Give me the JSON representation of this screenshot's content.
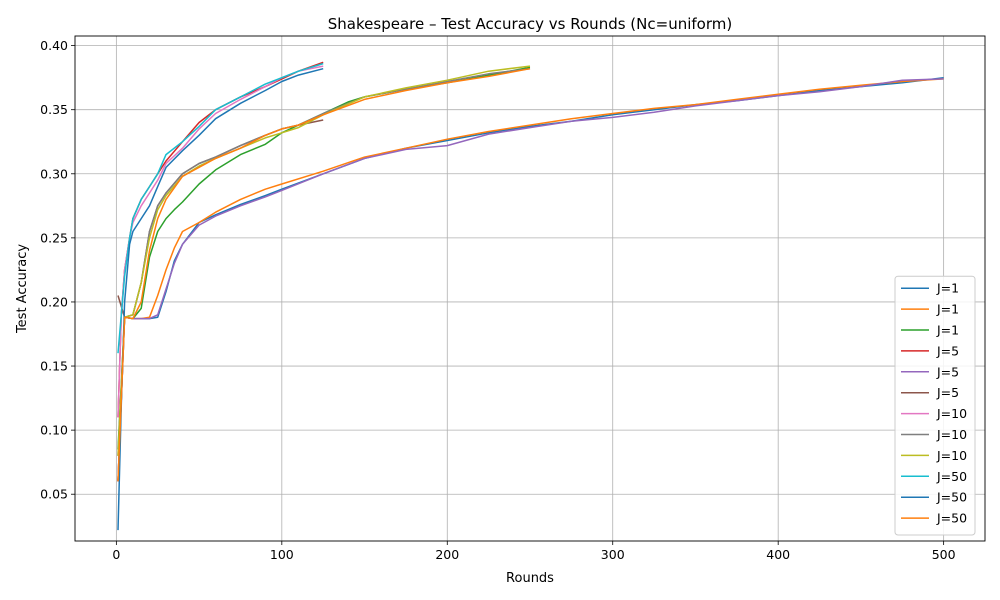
{
  "chart_data": {
    "type": "line",
    "title": "Shakespeare – Test Accuracy vs Rounds (Nc=uniform)",
    "xlabel": "Rounds",
    "ylabel": "Test Accuracy",
    "xlim": [
      -25,
      525
    ],
    "ylim": [
      0.0135,
      0.4075
    ],
    "xticks": [
      0,
      100,
      200,
      300,
      400,
      500
    ],
    "yticks": [
      0.05,
      0.1,
      0.15,
      0.2,
      0.25,
      0.3,
      0.35,
      0.4
    ],
    "grid": true,
    "legend_position": "lower-right",
    "series": [
      {
        "name": "J=1",
        "color": "#1f77b4",
        "x": [
          1,
          5,
          10,
          15,
          20,
          25,
          30,
          35,
          40,
          50,
          60,
          75,
          90,
          100,
          125,
          150,
          175,
          200,
          225,
          250,
          275,
          300,
          325,
          350,
          375,
          400,
          425,
          450,
          475,
          500
        ],
        "y": [
          0.06,
          0.188,
          0.187,
          0.187,
          0.187,
          0.188,
          0.208,
          0.232,
          0.245,
          0.262,
          0.268,
          0.276,
          0.283,
          0.288,
          0.3,
          0.312,
          0.32,
          0.326,
          0.332,
          0.337,
          0.341,
          0.346,
          0.35,
          0.354,
          0.357,
          0.361,
          0.365,
          0.368,
          0.371,
          0.375
        ]
      },
      {
        "name": "J=1",
        "color": "#ff7f0e",
        "x": [
          1,
          5,
          10,
          15,
          20,
          25,
          30,
          35,
          40,
          50,
          60,
          75,
          90,
          100,
          125,
          150,
          175,
          200,
          225,
          250,
          275,
          300,
          325,
          350,
          375,
          400,
          425,
          450,
          475,
          500
        ],
        "y": [
          0.06,
          0.188,
          0.187,
          0.187,
          0.188,
          0.205,
          0.225,
          0.242,
          0.255,
          0.262,
          0.27,
          0.28,
          0.288,
          0.292,
          0.302,
          0.313,
          0.32,
          0.327,
          0.333,
          0.338,
          0.343,
          0.347,
          0.351,
          0.354,
          0.358,
          0.362,
          0.366,
          0.369,
          0.372,
          0.374
        ]
      },
      {
        "name": "J=1",
        "color": "#2ca02c",
        "x": [
          1,
          5,
          10,
          15,
          20,
          25,
          30,
          35,
          40,
          50,
          60,
          75,
          90,
          100,
          110,
          125,
          140,
          150,
          175,
          200,
          225,
          250
        ],
        "y": [
          0.085,
          0.188,
          0.187,
          0.195,
          0.235,
          0.255,
          0.265,
          0.272,
          0.278,
          0.292,
          0.303,
          0.315,
          0.323,
          0.332,
          0.338,
          0.347,
          0.356,
          0.36,
          0.366,
          0.371,
          0.377,
          0.383
        ]
      },
      {
        "name": "J=5",
        "color": "#d62728",
        "x": [
          1,
          3,
          5,
          8,
          10,
          15,
          20,
          25,
          30,
          40,
          50,
          60,
          75,
          90,
          100,
          110,
          125
        ],
        "y": [
          0.11,
          0.19,
          0.225,
          0.25,
          0.265,
          0.28,
          0.29,
          0.3,
          0.31,
          0.325,
          0.34,
          0.35,
          0.36,
          0.368,
          0.374,
          0.38,
          0.387
        ]
      },
      {
        "name": "J=5",
        "color": "#9467bd",
        "x": [
          1,
          5,
          10,
          15,
          20,
          25,
          30,
          35,
          40,
          50,
          60,
          75,
          90,
          100,
          125,
          150,
          175,
          200,
          225,
          250,
          275,
          300,
          325,
          350,
          375,
          400,
          425,
          450,
          475,
          500
        ],
        "y": [
          0.06,
          0.188,
          0.187,
          0.187,
          0.187,
          0.19,
          0.21,
          0.23,
          0.245,
          0.26,
          0.267,
          0.275,
          0.282,
          0.287,
          0.3,
          0.312,
          0.319,
          0.322,
          0.331,
          0.336,
          0.341,
          0.344,
          0.348,
          0.353,
          0.357,
          0.361,
          0.364,
          0.368,
          0.373,
          0.374
        ]
      },
      {
        "name": "J=5",
        "color": "#8c564b",
        "x": [
          1,
          5,
          10,
          15,
          20,
          25,
          30,
          40,
          50,
          60,
          75,
          90,
          100,
          110,
          125
        ],
        "y": [
          0.205,
          0.188,
          0.19,
          0.215,
          0.255,
          0.275,
          0.285,
          0.3,
          0.308,
          0.313,
          0.322,
          0.33,
          0.335,
          0.338,
          0.342
        ]
      },
      {
        "name": "J=10",
        "color": "#e377c2",
        "x": [
          1,
          3,
          5,
          8,
          10,
          15,
          20,
          25,
          30,
          40,
          50,
          60,
          75,
          90,
          100,
          110,
          125
        ],
        "y": [
          0.11,
          0.19,
          0.225,
          0.25,
          0.262,
          0.275,
          0.285,
          0.295,
          0.308,
          0.32,
          0.335,
          0.347,
          0.358,
          0.368,
          0.375,
          0.38,
          0.384
        ]
      },
      {
        "name": "J=10",
        "color": "#7f7f7f",
        "x": [
          1,
          5,
          10,
          15,
          20,
          25,
          30,
          40,
          50,
          60,
          75,
          90,
          100,
          110,
          125,
          150,
          175,
          200,
          225,
          250
        ],
        "y": [
          0.08,
          0.188,
          0.19,
          0.215,
          0.255,
          0.275,
          0.285,
          0.3,
          0.308,
          0.313,
          0.322,
          0.33,
          0.335,
          0.338,
          0.347,
          0.36,
          0.366,
          0.372,
          0.378,
          0.382
        ]
      },
      {
        "name": "J=10",
        "color": "#bcbd22",
        "x": [
          1,
          5,
          10,
          15,
          20,
          25,
          30,
          40,
          50,
          60,
          75,
          90,
          100,
          110,
          125,
          150,
          175,
          200,
          225,
          250
        ],
        "y": [
          0.08,
          0.188,
          0.19,
          0.215,
          0.25,
          0.272,
          0.283,
          0.298,
          0.306,
          0.312,
          0.32,
          0.328,
          0.332,
          0.336,
          0.346,
          0.36,
          0.367,
          0.373,
          0.38,
          0.384
        ]
      },
      {
        "name": "J=50",
        "color": "#17becf",
        "x": [
          1,
          3,
          5,
          8,
          10,
          15,
          20,
          25,
          30,
          40,
          50,
          60,
          75,
          90,
          100,
          110,
          125
        ],
        "y": [
          0.16,
          0.19,
          0.22,
          0.25,
          0.265,
          0.28,
          0.29,
          0.3,
          0.315,
          0.325,
          0.337,
          0.35,
          0.36,
          0.37,
          0.375,
          0.38,
          0.386
        ]
      },
      {
        "name": "J=50",
        "color": "#1f77b4",
        "x": [
          1,
          3,
          5,
          8,
          10,
          15,
          20,
          25,
          30,
          40,
          50,
          60,
          75,
          90,
          100,
          110,
          125
        ],
        "y": [
          0.022,
          0.12,
          0.2,
          0.245,
          0.255,
          0.265,
          0.275,
          0.29,
          0.305,
          0.318,
          0.33,
          0.343,
          0.355,
          0.365,
          0.372,
          0.377,
          0.382
        ]
      },
      {
        "name": "J=50",
        "color": "#ff7f0e",
        "x": [
          1,
          5,
          10,
          15,
          20,
          25,
          30,
          40,
          50,
          60,
          75,
          90,
          100,
          110,
          125,
          150,
          175,
          200,
          225,
          250
        ],
        "y": [
          0.06,
          0.188,
          0.187,
          0.2,
          0.24,
          0.265,
          0.28,
          0.298,
          0.305,
          0.312,
          0.32,
          0.33,
          0.335,
          0.338,
          0.346,
          0.358,
          0.365,
          0.371,
          0.376,
          0.382
        ]
      }
    ]
  }
}
